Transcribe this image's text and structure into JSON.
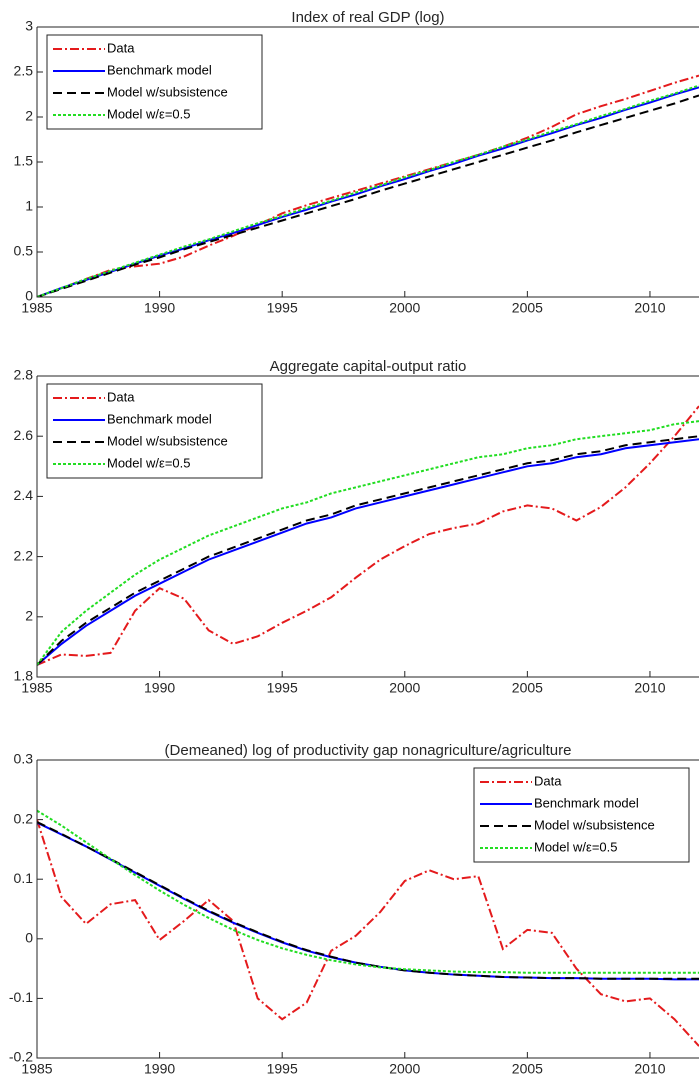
{
  "chart_data": [
    {
      "type": "line",
      "title": "Index of real GDP (log)",
      "x": [
        1985,
        1986,
        1987,
        1988,
        1989,
        1990,
        1991,
        1992,
        1993,
        1994,
        1995,
        1996,
        1997,
        1998,
        1999,
        2000,
        2001,
        2002,
        2003,
        2004,
        2005,
        2006,
        2007,
        2008,
        2009,
        2010,
        2011,
        2012
      ],
      "xlim": [
        1985,
        2012
      ],
      "xticks": [
        1985,
        1990,
        1995,
        2000,
        2005,
        2010
      ],
      "ylim": [
        0,
        3
      ],
      "yticks": [
        0,
        0.5,
        1,
        1.5,
        2,
        2.5,
        3
      ],
      "legend": "upper-left",
      "series": [
        {
          "name": "Data",
          "color": "#e41a1c",
          "style": "dashdot",
          "values": [
            0,
            0.1,
            0.2,
            0.3,
            0.34,
            0.37,
            0.45,
            0.57,
            0.68,
            0.8,
            0.93,
            1.02,
            1.1,
            1.18,
            1.26,
            1.34,
            1.42,
            1.5,
            1.58,
            1.67,
            1.77,
            1.89,
            2.03,
            2.12,
            2.2,
            2.29,
            2.38,
            2.46
          ]
        },
        {
          "name": "Benchmark model",
          "color": "#0000ff",
          "style": "solid",
          "values": [
            0,
            0.1,
            0.19,
            0.28,
            0.37,
            0.46,
            0.54,
            0.63,
            0.71,
            0.8,
            0.89,
            0.97,
            1.06,
            1.14,
            1.23,
            1.31,
            1.4,
            1.48,
            1.57,
            1.65,
            1.74,
            1.82,
            1.91,
            1.99,
            2.08,
            2.16,
            2.25,
            2.33
          ]
        },
        {
          "name": "Model w/subsistence",
          "color": "#000000",
          "style": "dashed",
          "values": [
            0,
            0.09,
            0.18,
            0.27,
            0.36,
            0.44,
            0.53,
            0.61,
            0.69,
            0.77,
            0.85,
            0.93,
            1.01,
            1.09,
            1.18,
            1.26,
            1.34,
            1.42,
            1.5,
            1.58,
            1.66,
            1.74,
            1.83,
            1.91,
            1.99,
            2.07,
            2.15,
            2.24
          ]
        },
        {
          "name": "Model w/ε=0.5",
          "color": "#22dd22",
          "style": "dotted",
          "values": [
            0,
            0.1,
            0.2,
            0.29,
            0.38,
            0.47,
            0.56,
            0.64,
            0.73,
            0.82,
            0.9,
            0.99,
            1.07,
            1.16,
            1.24,
            1.33,
            1.41,
            1.5,
            1.58,
            1.67,
            1.75,
            1.84,
            1.92,
            2.01,
            2.09,
            2.18,
            2.26,
            2.35
          ]
        }
      ]
    },
    {
      "type": "line",
      "title": "Aggregate capital-output ratio",
      "x": [
        1985,
        1986,
        1987,
        1988,
        1989,
        1990,
        1991,
        1992,
        1993,
        1994,
        1995,
        1996,
        1997,
        1998,
        1999,
        2000,
        2001,
        2002,
        2003,
        2004,
        2005,
        2006,
        2007,
        2008,
        2009,
        2010,
        2011,
        2012
      ],
      "xlim": [
        1985,
        2012
      ],
      "xticks": [
        1985,
        1990,
        1995,
        2000,
        2005,
        2010
      ],
      "ylim": [
        1.8,
        2.8
      ],
      "yticks": [
        1.8,
        2,
        2.2,
        2.4,
        2.6,
        2.8
      ],
      "legend": "upper-left",
      "series": [
        {
          "name": "Data",
          "color": "#e41a1c",
          "style": "dashdot",
          "values": [
            1.84,
            1.875,
            1.87,
            1.88,
            2.02,
            2.095,
            2.06,
            1.955,
            1.91,
            1.935,
            1.98,
            2.02,
            2.065,
            2.13,
            2.19,
            2.235,
            2.275,
            2.295,
            2.31,
            2.35,
            2.37,
            2.36,
            2.32,
            2.365,
            2.43,
            2.51,
            2.6,
            2.7
          ]
        },
        {
          "name": "Benchmark model",
          "color": "#0000ff",
          "style": "solid",
          "values": [
            1.84,
            1.91,
            1.97,
            2.02,
            2.07,
            2.11,
            2.15,
            2.19,
            2.22,
            2.25,
            2.28,
            2.31,
            2.33,
            2.36,
            2.38,
            2.4,
            2.42,
            2.44,
            2.46,
            2.48,
            2.5,
            2.51,
            2.53,
            2.54,
            2.56,
            2.57,
            2.58,
            2.59
          ]
        },
        {
          "name": "Model w/subsistence",
          "color": "#000000",
          "style": "dashed",
          "values": [
            1.84,
            1.92,
            1.98,
            2.03,
            2.08,
            2.12,
            2.16,
            2.2,
            2.23,
            2.26,
            2.29,
            2.32,
            2.34,
            2.37,
            2.39,
            2.41,
            2.43,
            2.45,
            2.47,
            2.49,
            2.51,
            2.52,
            2.54,
            2.55,
            2.57,
            2.58,
            2.59,
            2.6
          ]
        },
        {
          "name": "Model w/ε=0.5",
          "color": "#22dd22",
          "style": "dotted",
          "values": [
            1.84,
            1.95,
            2.02,
            2.08,
            2.14,
            2.19,
            2.23,
            2.27,
            2.3,
            2.33,
            2.36,
            2.38,
            2.41,
            2.43,
            2.45,
            2.47,
            2.49,
            2.51,
            2.53,
            2.54,
            2.56,
            2.57,
            2.59,
            2.6,
            2.61,
            2.62,
            2.64,
            2.65
          ]
        }
      ]
    },
    {
      "type": "line",
      "title": "(Demeaned) log of productivity gap nonagriculture/agriculture",
      "x": [
        1985,
        1986,
        1987,
        1988,
        1989,
        1990,
        1991,
        1992,
        1993,
        1994,
        1995,
        1996,
        1997,
        1998,
        1999,
        2000,
        2001,
        2002,
        2003,
        2004,
        2005,
        2006,
        2007,
        2008,
        2009,
        2010,
        2011,
        2012
      ],
      "xlim": [
        1985,
        2012
      ],
      "xticks": [
        1985,
        1990,
        1995,
        2000,
        2005,
        2010
      ],
      "ylim": [
        -0.2,
        0.3
      ],
      "yticks": [
        -0.2,
        -0.1,
        0,
        0.1,
        0.2,
        0.3
      ],
      "legend": "upper-right",
      "series": [
        {
          "name": "Data",
          "color": "#e41a1c",
          "style": "dashdot",
          "values": [
            0.2,
            0.07,
            0.025,
            0.058,
            0.065,
            -0.002,
            0.03,
            0.065,
            0.03,
            -0.1,
            -0.135,
            -0.107,
            -0.02,
            0.005,
            0.045,
            0.097,
            0.115,
            0.1,
            0.105,
            -0.017,
            0.015,
            0.01,
            -0.05,
            -0.093,
            -0.105,
            -0.1,
            -0.135,
            -0.18
          ]
        },
        {
          "name": "Benchmark model",
          "color": "#0000ff",
          "style": "solid",
          "values": [
            0.195,
            0.175,
            0.155,
            0.133,
            0.111,
            0.089,
            0.067,
            0.046,
            0.027,
            0.01,
            -0.006,
            -0.02,
            -0.031,
            -0.04,
            -0.047,
            -0.053,
            -0.057,
            -0.06,
            -0.062,
            -0.064,
            -0.065,
            -0.066,
            -0.066,
            -0.067,
            -0.067,
            -0.067,
            -0.068,
            -0.068
          ]
        },
        {
          "name": "Model w/subsistence",
          "color": "#000000",
          "style": "dashed",
          "values": [
            0.196,
            0.176,
            0.155,
            0.134,
            0.112,
            0.09,
            0.068,
            0.047,
            0.028,
            0.011,
            -0.005,
            -0.019,
            -0.03,
            -0.04,
            -0.047,
            -0.053,
            -0.057,
            -0.06,
            -0.062,
            -0.064,
            -0.065,
            -0.066,
            -0.066,
            -0.067,
            -0.067,
            -0.067,
            -0.067,
            -0.067
          ]
        },
        {
          "name": "Model w/ε=0.5",
          "color": "#22dd22",
          "style": "dotted",
          "values": [
            0.215,
            0.19,
            0.162,
            0.134,
            0.107,
            0.081,
            0.057,
            0.035,
            0.015,
            -0.002,
            -0.016,
            -0.027,
            -0.036,
            -0.043,
            -0.048,
            -0.051,
            -0.053,
            -0.055,
            -0.056,
            -0.056,
            -0.057,
            -0.057,
            -0.057,
            -0.057,
            -0.057,
            -0.057,
            -0.057,
            -0.057
          ]
        }
      ]
    }
  ]
}
